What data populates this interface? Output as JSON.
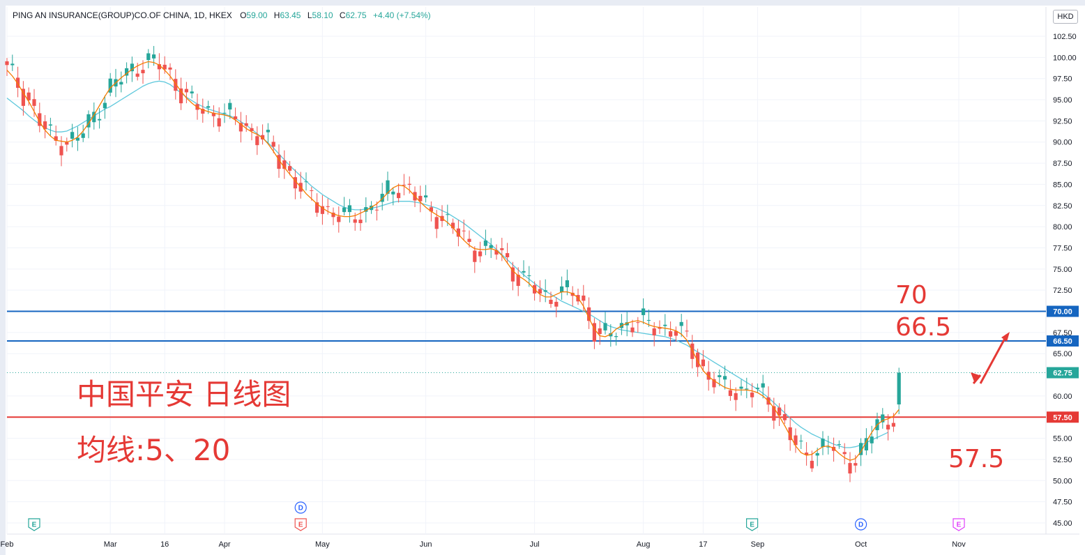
{
  "header": {
    "symbol": "PING AN INSURANCE(GROUP)CO.OF CHINA, 1D, HKEX",
    "open_label": "O",
    "open": "59.00",
    "high_label": "H",
    "high": "63.45",
    "low_label": "L",
    "low": "58.10",
    "close_label": "C",
    "close": "62.75",
    "change": "+4.40 (+7.54%)"
  },
  "currency": "HKD",
  "colors": {
    "up": "#26a69a",
    "down": "#ef5350",
    "ma5": "#f57c00",
    "ma20": "#5ec8dc",
    "blue_line": "#1565c0",
    "red_line": "#e53935",
    "annotation": "#e53935"
  },
  "annotations": {
    "title": "中国平安 日线图",
    "ma_note": "均线:5、20",
    "level_70": "70",
    "level_665": "66.5",
    "level_575": "57.5"
  },
  "chart_data": {
    "type": "candlestick",
    "series_indicators": [
      "MA5",
      "MA20"
    ],
    "y_ticks": [
      "102.50",
      "100.00",
      "97.50",
      "95.00",
      "92.50",
      "90.00",
      "87.50",
      "85.00",
      "82.50",
      "80.00",
      "77.50",
      "75.00",
      "72.50",
      "70.00",
      "67.50",
      "65.00",
      "62.75",
      "60.00",
      "57.50",
      "55.00",
      "52.50",
      "50.00",
      "47.50",
      "45.00"
    ],
    "ylim": [
      43.5,
      104.5
    ],
    "x_ticks": [
      {
        "label": "Feb",
        "bar": 0
      },
      {
        "label": "Mar",
        "bar": 19
      },
      {
        "label": "16",
        "bar": 29
      },
      {
        "label": "Apr",
        "bar": 40
      },
      {
        "label": "May",
        "bar": 58
      },
      {
        "label": "Jun",
        "bar": 77
      },
      {
        "label": "Jul",
        "bar": 97
      },
      {
        "label": "Aug",
        "bar": 117
      },
      {
        "label": "17",
        "bar": 128
      },
      {
        "label": "Sep",
        "bar": 138
      },
      {
        "label": "Oct",
        "bar": 157
      },
      {
        "label": "Nov",
        "bar": 175
      }
    ],
    "horizontal_levels": [
      {
        "value": 70.0,
        "label": "70.00",
        "color": "#1565c0"
      },
      {
        "value": 66.5,
        "label": "66.50",
        "color": "#1565c0"
      },
      {
        "value": 57.5,
        "label": "57.50",
        "color": "#e53935"
      }
    ],
    "last_price": {
      "value": 62.75,
      "label": "62.75"
    },
    "events": [
      {
        "type": "E",
        "bar": 5,
        "color": "#26a69a"
      },
      {
        "type": "D",
        "bar": 54,
        "color": "#2962ff",
        "row": "upper"
      },
      {
        "type": "E",
        "bar": 54,
        "color": "#ef5350"
      },
      {
        "type": "E",
        "bar": 137,
        "color": "#26a69a"
      },
      {
        "type": "D",
        "bar": 157,
        "color": "#2962ff"
      },
      {
        "type": "E",
        "bar": 175,
        "color": "#e040fb"
      }
    ],
    "ma5": [
      98.5,
      97.8,
      96.9,
      95.8,
      94.8,
      93.6,
      92.4,
      91.4,
      90.7,
      90.2,
      90.1,
      90.0,
      90.2,
      90.6,
      91.3,
      92.2,
      93.2,
      94.3,
      95.4,
      96.4,
      97.0,
      97.6,
      98.1,
      98.6,
      99.0,
      99.3,
      99.5,
      99.4,
      99.1,
      98.5,
      97.8,
      96.9,
      96.0,
      95.2,
      94.6,
      94.1,
      93.8,
      93.6,
      93.4,
      93.3,
      93.2,
      93.0,
      92.6,
      92.1,
      91.6,
      91.2,
      90.9,
      90.5,
      89.8,
      88.9,
      87.9,
      87.0,
      86.2,
      85.4,
      84.7,
      83.9,
      83.3,
      82.7,
      82.2,
      81.8,
      81.5,
      81.3,
      81.2,
      81.2,
      81.3,
      81.6,
      81.9,
      82.3,
      82.7,
      83.3,
      84.0,
      84.6,
      84.9,
      84.8,
      84.3,
      83.6,
      82.9,
      82.3,
      81.8,
      81.4,
      81.0,
      80.5,
      79.9,
      79.1,
      78.4,
      77.8,
      77.4,
      77.3,
      77.3,
      77.4,
      77.2,
      76.6,
      75.7,
      74.8,
      74.2,
      73.8,
      73.3,
      72.6,
      72.0,
      71.7,
      71.7,
      72.0,
      72.3,
      72.3,
      72.1,
      71.6,
      70.6,
      69.2,
      67.9,
      67.1,
      67.0,
      67.3,
      67.9,
      68.3,
      68.6,
      68.8,
      68.9,
      68.7,
      68.4,
      68.2,
      68.1,
      68.0,
      67.9,
      67.7,
      67.3,
      66.6,
      65.4,
      64.1,
      63.0,
      62.3,
      61.8,
      61.4,
      61.0,
      60.8,
      60.7,
      60.7,
      60.7,
      60.6,
      60.4,
      60.0,
      59.4,
      58.6,
      57.6,
      56.5,
      55.3,
      54.1,
      53.3,
      53.0,
      53.1,
      53.6,
      54.0,
      54.1,
      53.8,
      53.2,
      52.7,
      52.4,
      52.6,
      53.4,
      54.6,
      55.7,
      56.6,
      57.1,
      57.3,
      57.6,
      58.4
    ],
    "ma20": [
      95.2,
      94.7,
      94.2,
      93.7,
      93.1,
      92.6,
      92.1,
      91.7,
      91.4,
      91.2,
      91.2,
      91.3,
      91.6,
      91.9,
      92.3,
      92.7,
      93.1,
      93.5,
      93.9,
      94.2,
      94.6,
      95.0,
      95.4,
      95.8,
      96.2,
      96.6,
      96.9,
      97.1,
      97.2,
      97.1,
      96.8,
      96.3,
      95.8,
      95.3,
      94.9,
      94.5,
      94.2,
      93.9,
      93.7,
      93.5,
      93.3,
      93.1,
      92.8,
      92.4,
      92.0,
      91.5,
      91.0,
      90.5,
      89.9,
      89.3,
      88.6,
      87.9,
      87.2,
      86.6,
      86.0,
      85.4,
      84.8,
      84.3,
      83.8,
      83.4,
      83.0,
      82.6,
      82.3,
      82.1,
      82.0,
      82.0,
      82.1,
      82.2,
      82.3,
      82.5,
      82.7,
      82.9,
      83.0,
      83.0,
      83.0,
      82.9,
      82.8,
      82.6,
      82.4,
      82.2,
      81.9,
      81.6,
      81.2,
      80.8,
      80.4,
      79.9,
      79.4,
      78.9,
      78.4,
      77.9,
      77.3,
      76.7,
      76.1,
      75.5,
      74.9,
      74.3,
      73.8,
      73.3,
      72.8,
      72.4,
      72.0,
      71.6,
      71.2,
      70.9,
      70.6,
      70.3,
      70.0,
      69.7,
      69.3,
      68.9,
      68.5,
      68.2,
      68.0,
      67.8,
      67.7,
      67.6,
      67.5,
      67.4,
      67.3,
      67.2,
      67.1,
      67.0,
      66.8,
      66.6,
      66.3,
      66.0,
      65.6,
      65.2,
      64.8,
      64.4,
      64.0,
      63.6,
      63.2,
      62.8,
      62.4,
      62.0,
      61.6,
      61.2,
      60.8,
      60.3,
      59.8,
      59.2,
      58.6,
      58.0,
      57.4,
      56.8,
      56.3,
      55.9,
      55.5,
      55.2,
      54.9,
      54.6,
      54.3,
      54.1,
      53.9,
      53.9,
      54.0,
      54.2,
      54.5,
      54.8,
      55.1,
      55.4,
      55.7
    ]
  }
}
